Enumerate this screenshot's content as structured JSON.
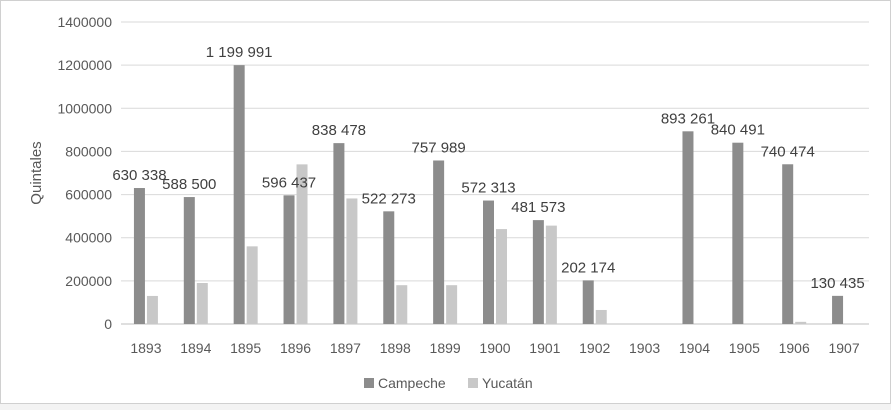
{
  "chart_data": {
    "type": "bar",
    "categories": [
      "1893",
      "1894",
      "1895",
      "1896",
      "1897",
      "1898",
      "1899",
      "1900",
      "1901",
      "1902",
      "1903",
      "1904",
      "1905",
      "1906",
      "1907"
    ],
    "series": [
      {
        "name": "Campeche",
        "color": "#8c8c8c",
        "values": [
          630338,
          588500,
          1199991,
          596437,
          838478,
          522273,
          757989,
          572313,
          481573,
          202174,
          0,
          893261,
          840491,
          740474,
          130435
        ],
        "labels": [
          "630 338",
          "588 500",
          "1 199 991",
          "596 437",
          "838 478",
          "522 273",
          "757 989",
          "572 313",
          "481 573",
          "202 174",
          "",
          "893 261",
          "840 491",
          "740 474",
          "130 435"
        ]
      },
      {
        "name": "Yucatán",
        "color": "#c8c8c8",
        "values": [
          130000,
          190000,
          360000,
          740000,
          582000,
          180000,
          180000,
          440000,
          456000,
          65000,
          0,
          0,
          0,
          10000,
          0
        ]
      }
    ],
    "ylabel": "Quintales",
    "ylim": [
      0,
      1400000
    ],
    "yticks": [
      "0",
      "200000",
      "400000",
      "600000",
      "800000",
      "1000000",
      "1200000",
      "1400000"
    ],
    "legend": "bottom",
    "grid": true
  }
}
